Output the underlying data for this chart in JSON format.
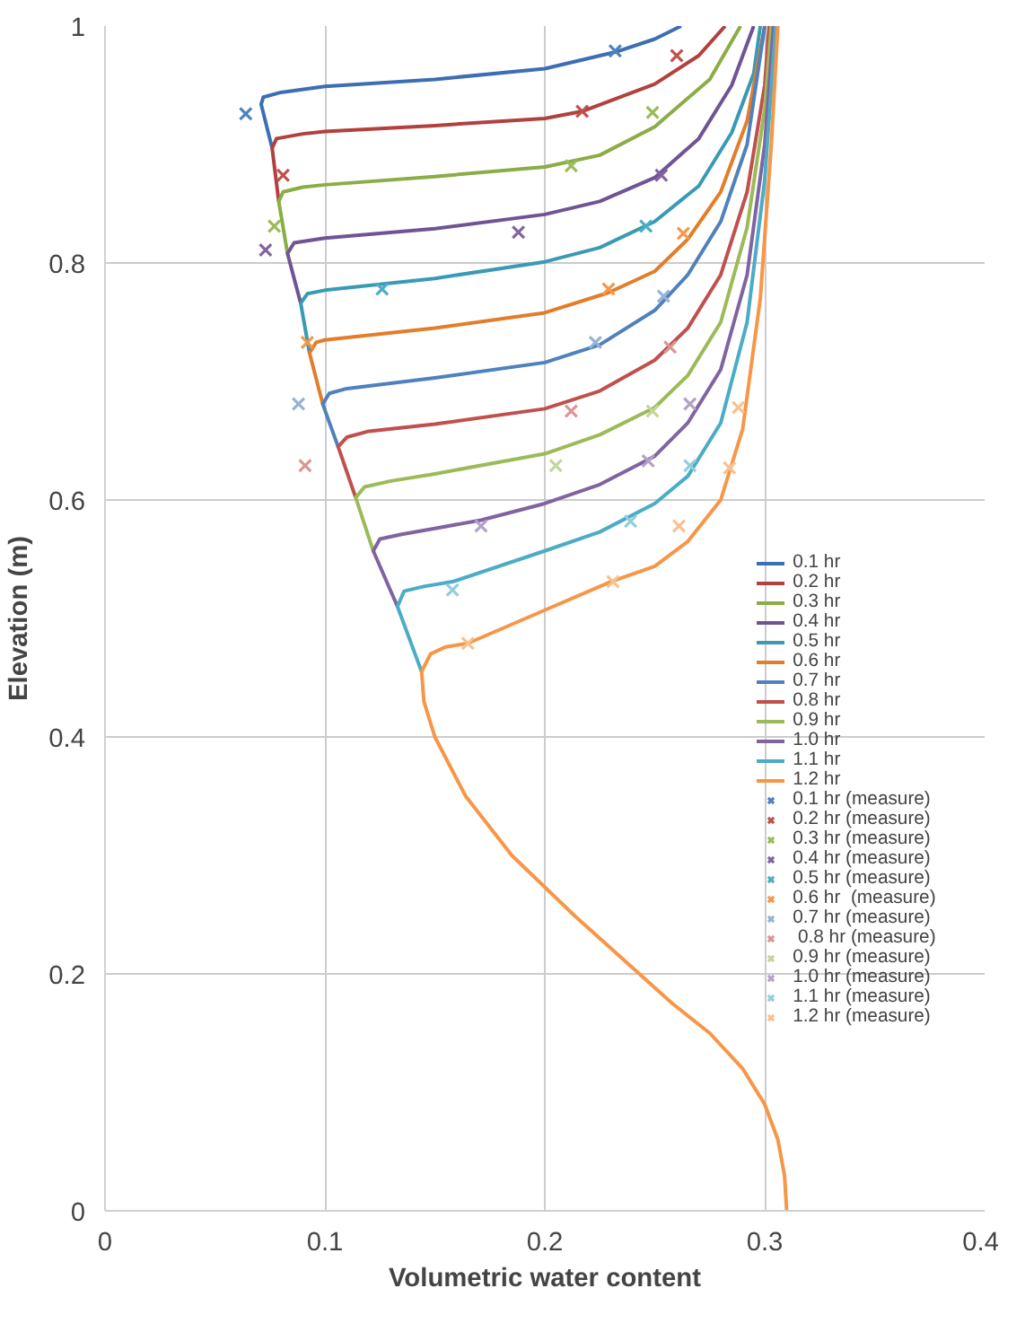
{
  "chart_data": {
    "type": "line",
    "xlabel": "Volumetric water content",
    "ylabel": "Elevation (m)",
    "xlim": [
      0,
      0.4
    ],
    "ylim": [
      0,
      1
    ],
    "xticks": [
      0,
      0.1,
      0.2,
      0.3,
      0.4
    ],
    "yticks": [
      0,
      0.2,
      0.4,
      0.6,
      0.8,
      1
    ],
    "grid": true,
    "legend": "right",
    "marker": "none",
    "line_style": "solid",
    "series": [
      {
        "name": "0.1 hr",
        "color": "#3c6eb4",
        "x": [
          0.076,
          0.071,
          0.072,
          0.08,
          0.1,
          0.15,
          0.2,
          0.232,
          0.25,
          0.262
        ],
        "values": [
          0.897,
          0.934,
          0.94,
          0.944,
          0.949,
          0.955,
          0.964,
          0.978,
          0.989,
          1.0
        ]
      },
      {
        "name": "0.2 hr",
        "color": "#b2403e",
        "x": [
          0.079,
          0.076,
          0.078,
          0.09,
          0.1,
          0.15,
          0.2,
          0.217,
          0.25,
          0.27,
          0.282
        ],
        "values": [
          0.852,
          0.897,
          0.905,
          0.909,
          0.911,
          0.916,
          0.922,
          0.928,
          0.951,
          0.975,
          1.0
        ]
      },
      {
        "name": "0.3 hr",
        "color": "#8aad46",
        "x": [
          0.083,
          0.079,
          0.081,
          0.09,
          0.1,
          0.15,
          0.2,
          0.225,
          0.25,
          0.275,
          0.289
        ],
        "values": [
          0.808,
          0.852,
          0.86,
          0.864,
          0.866,
          0.873,
          0.881,
          0.891,
          0.915,
          0.955,
          1.0
        ]
      },
      {
        "name": "0.4 hr",
        "color": "#6e5494",
        "x": [
          0.089,
          0.083,
          0.086,
          0.1,
          0.15,
          0.2,
          0.225,
          0.25,
          0.27,
          0.285,
          0.295
        ],
        "values": [
          0.766,
          0.808,
          0.817,
          0.821,
          0.829,
          0.841,
          0.852,
          0.872,
          0.905,
          0.95,
          1.0
        ]
      },
      {
        "name": "0.5 hr",
        "color": "#3a9ab5",
        "x": [
          0.093,
          0.089,
          0.092,
          0.1,
          0.15,
          0.2,
          0.225,
          0.25,
          0.27,
          0.285,
          0.295,
          0.298
        ],
        "values": [
          0.724,
          0.766,
          0.774,
          0.777,
          0.787,
          0.801,
          0.813,
          0.835,
          0.865,
          0.91,
          0.96,
          1.0
        ]
      },
      {
        "name": "0.6 hr",
        "color": "#e37d2a",
        "x": [
          0.099,
          0.093,
          0.096,
          0.1,
          0.15,
          0.2,
          0.229,
          0.25,
          0.265,
          0.28,
          0.292,
          0.3
        ],
        "values": [
          0.681,
          0.724,
          0.733,
          0.735,
          0.745,
          0.758,
          0.775,
          0.793,
          0.82,
          0.86,
          0.92,
          1.0
        ]
      },
      {
        "name": "0.7 hr",
        "color": "#4f81bd",
        "x": [
          0.106,
          0.099,
          0.102,
          0.11,
          0.15,
          0.2,
          0.225,
          0.25,
          0.265,
          0.28,
          0.292,
          0.3
        ],
        "values": [
          0.645,
          0.681,
          0.69,
          0.694,
          0.703,
          0.716,
          0.731,
          0.76,
          0.79,
          0.835,
          0.9,
          1.0
        ]
      },
      {
        "name": "0.8 hr",
        "color": "#c0504d",
        "x": [
          0.114,
          0.106,
          0.11,
          0.12,
          0.15,
          0.2,
          0.225,
          0.25,
          0.265,
          0.28,
          0.292,
          0.3,
          0.302
        ],
        "values": [
          0.602,
          0.645,
          0.653,
          0.658,
          0.664,
          0.677,
          0.692,
          0.718,
          0.745,
          0.79,
          0.86,
          0.95,
          1.0
        ]
      },
      {
        "name": "0.9 hr",
        "color": "#9bbb59",
        "x": [
          0.122,
          0.114,
          0.118,
          0.13,
          0.15,
          0.2,
          0.225,
          0.25,
          0.265,
          0.28,
          0.292,
          0.3,
          0.303
        ],
        "values": [
          0.557,
          0.602,
          0.611,
          0.616,
          0.622,
          0.639,
          0.655,
          0.678,
          0.705,
          0.75,
          0.83,
          0.93,
          1.0
        ]
      },
      {
        "name": "1.0 hr",
        "color": "#8064a2",
        "x": [
          0.133,
          0.122,
          0.125,
          0.135,
          0.15,
          0.171,
          0.2,
          0.225,
          0.25,
          0.265,
          0.28,
          0.292,
          0.3,
          0.304
        ],
        "values": [
          0.51,
          0.557,
          0.567,
          0.571,
          0.576,
          0.583,
          0.597,
          0.613,
          0.637,
          0.665,
          0.71,
          0.79,
          0.9,
          1.0
        ]
      },
      {
        "name": "1.1 hr",
        "color": "#4bacc6",
        "x": [
          0.144,
          0.133,
          0.136,
          0.145,
          0.158,
          0.2,
          0.225,
          0.25,
          0.265,
          0.28,
          0.292,
          0.3,
          0.305
        ],
        "values": [
          0.455,
          0.51,
          0.523,
          0.527,
          0.531,
          0.557,
          0.573,
          0.597,
          0.62,
          0.665,
          0.75,
          0.87,
          1.0
        ]
      },
      {
        "name": "1.2 hr",
        "color": "#f79646",
        "x": [
          0.31,
          0.309,
          0.306,
          0.3,
          0.29,
          0.275,
          0.258,
          0.243,
          0.213,
          0.185,
          0.164,
          0.15,
          0.145,
          0.144,
          0.148,
          0.155,
          0.165,
          0.2,
          0.23,
          0.25,
          0.265,
          0.28,
          0.29,
          0.298,
          0.303,
          0.306
        ],
        "values": [
          0,
          0.03,
          0.06,
          0.09,
          0.12,
          0.15,
          0.175,
          0.2,
          0.25,
          0.3,
          0.35,
          0.4,
          0.43,
          0.455,
          0.47,
          0.476,
          0.479,
          0.507,
          0.531,
          0.544,
          0.565,
          0.6,
          0.66,
          0.77,
          0.9,
          1.0
        ]
      },
      {
        "name": "0.1 hr (measure)",
        "type": "scatter",
        "marker": "cross",
        "color": "#4f81bd",
        "x": [
          0.064,
          0.232
        ],
        "values": [
          0.926,
          0.979
        ]
      },
      {
        "name": "0.2 hr (measure)",
        "type": "scatter",
        "marker": "cross",
        "color": "#c0504d",
        "x": [
          0.081,
          0.217,
          0.26
        ],
        "values": [
          0.874,
          0.928,
          0.975
        ]
      },
      {
        "name": "0.3 hr (measure)",
        "type": "scatter",
        "marker": "cross",
        "color": "#9bbb59",
        "x": [
          0.077,
          0.212,
          0.249
        ],
        "values": [
          0.831,
          0.882,
          0.927
        ]
      },
      {
        "name": "0.4 hr (measure)",
        "type": "scatter",
        "marker": "cross",
        "color": "#8064a2",
        "x": [
          0.073,
          0.188,
          0.253
        ],
        "values": [
          0.811,
          0.826,
          0.874
        ]
      },
      {
        "name": "0.5 hr (measure)",
        "type": "scatter",
        "marker": "cross",
        "color": "#4bacc6",
        "x": [
          0.126,
          0.246
        ],
        "values": [
          0.778,
          0.831
        ]
      },
      {
        "name": "0.6 hr  (measure)",
        "type": "scatter",
        "marker": "cross",
        "color": "#f79646",
        "x": [
          0.092,
          0.229,
          0.263
        ],
        "values": [
          0.733,
          0.778,
          0.825
        ]
      },
      {
        "name": "0.7 hr (measure)",
        "type": "scatter",
        "marker": "cross",
        "color": "#95b3d7",
        "x": [
          0.088,
          0.223,
          0.254
        ],
        "values": [
          0.681,
          0.733,
          0.772
        ]
      },
      {
        "name": " 0.8 hr (measure)",
        "type": "scatter",
        "marker": "cross",
        "color": "#d99694",
        "x": [
          0.091,
          0.212,
          0.257
        ],
        "values": [
          0.629,
          0.675,
          0.729
        ]
      },
      {
        "name": "0.9 hr (measure)",
        "type": "scatter",
        "marker": "cross",
        "color": "#c3d69b",
        "x": [
          0.205,
          0.249
        ],
        "values": [
          0.629,
          0.675
        ]
      },
      {
        "name": "1.0 hr (measure)",
        "type": "scatter",
        "marker": "cross",
        "color": "#b3a2c7",
        "x": [
          0.171,
          0.247,
          0.266
        ],
        "values": [
          0.578,
          0.633,
          0.681
        ]
      },
      {
        "name": "1.1 hr (measure)",
        "type": "scatter",
        "marker": "cross",
        "color": "#93cddd",
        "x": [
          0.158,
          0.239,
          0.266
        ],
        "values": [
          0.524,
          0.582,
          0.629
        ]
      },
      {
        "name": "1.2 hr (measure)",
        "type": "scatter",
        "marker": "cross",
        "color": "#fac090",
        "x": [
          0.165,
          0.231,
          0.261,
          0.284,
          0.288
        ],
        "values": [
          0.479,
          0.531,
          0.578,
          0.627,
          0.678
        ]
      }
    ]
  }
}
